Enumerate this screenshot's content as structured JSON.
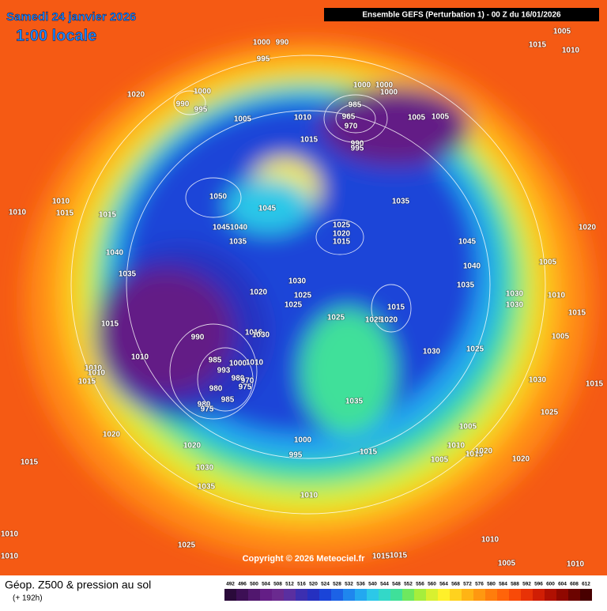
{
  "header": {
    "date": "Samedi 24 janvier 2026",
    "time": "1:00 locale",
    "run": "Ensemble GEFS  (Perturbation 1)  -  00 Z du 16/01/2026"
  },
  "copyright": "Copyright © 2026 Meteociel.fr",
  "footer": {
    "title": "Géop. Z500 & pression au sol",
    "lead": "(+ 192h)"
  },
  "scale": {
    "values": [
      492,
      496,
      500,
      504,
      508,
      512,
      516,
      520,
      524,
      528,
      532,
      536,
      540,
      544,
      548,
      552,
      556,
      560,
      564,
      568,
      572,
      576,
      580,
      584,
      588,
      592,
      596,
      600,
      604,
      608,
      612
    ],
    "colors": [
      "#2a0a3a",
      "#3d0f55",
      "#51176e",
      "#641e86",
      "#6a2a8f",
      "#5a2fa0",
      "#3c2fb0",
      "#2530c0",
      "#1a44d8",
      "#1c62e6",
      "#1f86ee",
      "#23a8f0",
      "#2cc8e8",
      "#33d8c8",
      "#3fe09a",
      "#6ee85f",
      "#a6ee3c",
      "#d8f030",
      "#fff02a",
      "#ffd21e",
      "#ffb414",
      "#ff9810",
      "#ff7d0c",
      "#ff640a",
      "#f84a08",
      "#e83206",
      "#d01e04",
      "#b01002",
      "#900800",
      "#6c0400",
      "#480000"
    ]
  },
  "pressure_labels": [
    1000,
    990,
    995,
    1020,
    1000,
    990,
    995,
    1005,
    1010,
    1015,
    1000,
    1000,
    985,
    965,
    970,
    1000,
    1005,
    1005,
    990,
    995,
    1005,
    1015,
    1010,
    1010,
    1010,
    1015,
    1015,
    1050,
    1045,
    1045,
    1040,
    1035,
    1035,
    1025,
    1020,
    1015,
    1045,
    1020,
    1040,
    1035,
    1040,
    1005,
    1030,
    1020,
    1035,
    1030,
    1030,
    1010,
    1025,
    1025,
    1015,
    1015,
    990,
    1015,
    1025,
    1025,
    1020,
    1016,
    1030,
    1005,
    1010,
    1030,
    1025,
    985,
    1000,
    1010,
    993,
    980,
    975,
    970,
    1010,
    1010,
    1015,
    1030,
    1015,
    980,
    985,
    980,
    975,
    1035,
    1025,
    1020,
    1020,
    1000,
    1005,
    995,
    1015,
    1005,
    1010,
    1015,
    1020,
    1015,
    1030,
    1020,
    1035,
    1010,
    1010,
    1010,
    1025,
    1015,
    1015,
    1005,
    1010,
    1010
  ]
}
